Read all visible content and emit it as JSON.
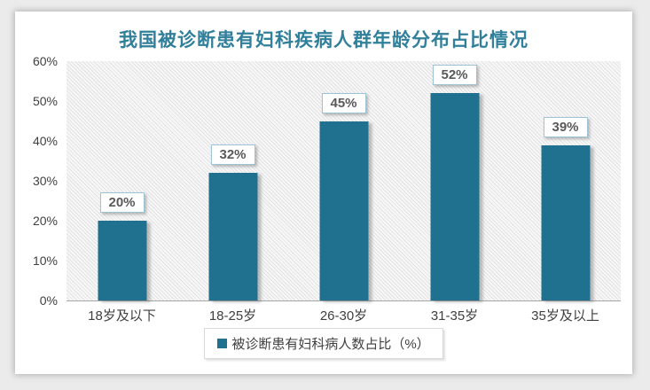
{
  "title": "我国被诊断患有妇科疾病人群年龄分布占比情况",
  "colors": {
    "outer_bg": "#ebebeb",
    "card_bg": "#ffffff",
    "title": "#31809b",
    "bar": "#20708f",
    "label_text": "#595959",
    "label_border": "#9dc3d6",
    "axis_text": "#404040",
    "axis_line": "#a6a6a6",
    "legend_border": "#d9d9d9"
  },
  "legend": {
    "marker": "teal-square",
    "label": "被诊断患有妇科病人数占比（%）"
  },
  "chart_data": {
    "type": "bar",
    "title": "我国被诊断患有妇科疾病人群年龄分布占比情况",
    "categories": [
      "18岁及以下",
      "18-25岁",
      "26-30岁",
      "31-35岁",
      "35岁及以上"
    ],
    "values": [
      20,
      32,
      45,
      52,
      39
    ],
    "data_labels": [
      "20%",
      "32%",
      "45%",
      "52%",
      "39%"
    ],
    "series": [
      {
        "name": "被诊断患有妇科病人数占比（%）",
        "values": [
          20,
          32,
          45,
          52,
          39
        ]
      }
    ],
    "xlabel": "",
    "ylabel": "",
    "ylim": [
      0,
      60
    ],
    "yticks": [
      "0%",
      "10%",
      "20%",
      "30%",
      "40%",
      "50%",
      "60%"
    ],
    "grid": false,
    "plot_background": "light-diagonal-hatch",
    "legend_position": "bottom"
  }
}
